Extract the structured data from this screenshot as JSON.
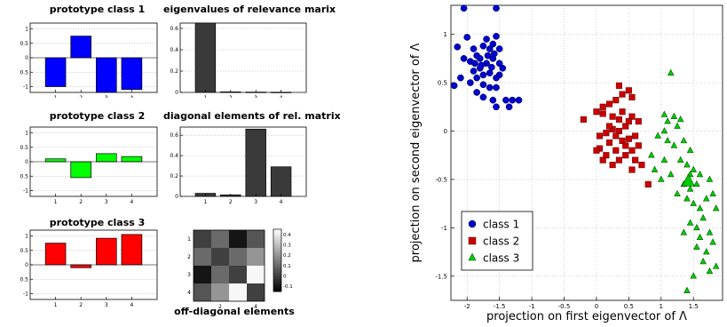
{
  "chart_data": [
    {
      "type": "bar",
      "title": "prototype class 1",
      "categories": [
        "1",
        "2",
        "3",
        "4"
      ],
      "values": [
        -1.0,
        0.75,
        -1.2,
        -1.1
      ],
      "ylim": [
        -1.2,
        1.2
      ],
      "yticks": [
        "1",
        "0.5",
        "0",
        "-0.5",
        "-1"
      ],
      "color": "#0000ff"
    },
    {
      "type": "bar",
      "title": "eigenvalues of relevance marix",
      "categories": [
        "1",
        "2",
        "3",
        "4"
      ],
      "values": [
        0.65,
        0.005,
        0.003,
        0.002
      ],
      "ylim": [
        0,
        0.65
      ],
      "yticks": [
        "0.6",
        "0.4",
        "0.2",
        "0"
      ],
      "color": "#3a3a3a"
    },
    {
      "type": "bar",
      "title": "prototype class 2",
      "categories": [
        "1",
        "2",
        "3",
        "4"
      ],
      "values": [
        0.1,
        -0.55,
        0.28,
        0.18
      ],
      "ylim": [
        -1.2,
        1.2
      ],
      "yticks": [
        "1",
        "0.5",
        "0",
        "-0.5",
        "-1"
      ],
      "color": "#00ff00"
    },
    {
      "type": "bar",
      "title": "diagonal elements of rel. matrix",
      "categories": [
        "1",
        "2",
        "3",
        "4"
      ],
      "values": [
        0.03,
        0.015,
        0.66,
        0.29
      ],
      "ylim": [
        0,
        0.68
      ],
      "yticks": [
        "0.6",
        "0.4",
        "0.2",
        "0"
      ],
      "color": "#3a3a3a"
    },
    {
      "type": "bar",
      "title": "prototype class 3",
      "categories": [
        "1",
        "2",
        "3",
        "4"
      ],
      "values": [
        0.75,
        -0.1,
        0.92,
        1.05
      ],
      "ylim": [
        -1.2,
        1.2
      ],
      "yticks": [
        "1",
        "0.5",
        "0",
        "-0.5",
        "-1"
      ],
      "color": "#ff0000"
    },
    {
      "type": "heatmap",
      "xlabel": "off-diagonal elements",
      "xticks": [
        "2",
        "4"
      ],
      "yticks": [
        "1",
        "2",
        "3",
        "4"
      ],
      "colorbar_ticks": [
        "0.4",
        "0.3",
        "0.2",
        "0.1",
        "0",
        "-0.1"
      ],
      "matrix": [
        [
          0.0,
          0.1,
          -0.1,
          0.05
        ],
        [
          0.1,
          0.0,
          0.1,
          0.2
        ],
        [
          -0.1,
          0.1,
          0.0,
          0.43
        ],
        [
          0.05,
          0.2,
          0.43,
          0.0
        ]
      ],
      "vmin": -0.15,
      "vmax": 0.45
    },
    {
      "type": "scatter",
      "xlabel": "projection on first eigenvector of Λ",
      "ylabel": "projection on second eigenvector of Λ",
      "xlim": [
        -2.25,
        1.95
      ],
      "ylim": [
        -1.75,
        1.3
      ],
      "xticks": [
        "-2",
        "-1.5",
        "-1",
        "-0.5",
        "0",
        "0.5",
        "1",
        "1.5"
      ],
      "yticks": [
        "1",
        "0.5",
        "0",
        "-0.5",
        "-1",
        "-1.5"
      ],
      "legend_position": "bottom-left",
      "series": [
        {
          "name": "class 1",
          "color": "#0000cc",
          "marker": "circle",
          "points": [
            [
              -2.05,
              1.27
            ],
            [
              -1.55,
              1.27
            ],
            [
              -2.15,
              0.87
            ],
            [
              -2.0,
              0.97
            ],
            [
              -1.9,
              0.85
            ],
            [
              -1.85,
              0.78
            ],
            [
              -1.8,
              0.75
            ],
            [
              -1.75,
              0.88
            ],
            [
              -1.7,
              0.95
            ],
            [
              -1.65,
              0.85
            ],
            [
              -1.6,
              0.9
            ],
            [
              -1.55,
              0.98
            ],
            [
              -1.5,
              0.85
            ],
            [
              -1.6,
              0.75
            ],
            [
              -1.7,
              0.7
            ],
            [
              -1.8,
              0.65
            ],
            [
              -1.9,
              0.62
            ],
            [
              -1.95,
              0.72
            ],
            [
              -2.05,
              0.75
            ],
            [
              -2.1,
              0.55
            ],
            [
              -2.2,
              0.47
            ],
            [
              -1.95,
              0.5
            ],
            [
              -1.85,
              0.55
            ],
            [
              -1.75,
              0.58
            ],
            [
              -1.65,
              0.6
            ],
            [
              -1.55,
              0.55
            ],
            [
              -1.5,
              0.7
            ],
            [
              -1.45,
              0.65
            ],
            [
              -1.75,
              0.48
            ],
            [
              -1.65,
              0.45
            ],
            [
              -1.55,
              0.45
            ],
            [
              -1.85,
              0.4
            ],
            [
              -1.75,
              0.35
            ],
            [
              -1.6,
              0.32
            ],
            [
              -1.4,
              0.32
            ],
            [
              -1.3,
              0.32
            ],
            [
              -1.55,
              0.25
            ],
            [
              -1.35,
              0.25
            ],
            [
              -1.2,
              0.32
            ],
            [
              -1.5,
              0.58
            ],
            [
              -1.68,
              0.78
            ],
            [
              -1.78,
              0.68
            ],
            [
              -1.62,
              0.66
            ],
            [
              -1.58,
              0.8
            ],
            [
              -1.88,
              0.7
            ]
          ]
        },
        {
          "name": "class 2",
          "color": "#cc0000",
          "marker": "square",
          "points": [
            [
              0.35,
              0.47
            ],
            [
              0.5,
              0.42
            ],
            [
              0.55,
              0.35
            ],
            [
              0.4,
              0.38
            ],
            [
              0.3,
              0.32
            ],
            [
              0.2,
              0.28
            ],
            [
              0.1,
              0.25
            ],
            [
              0.0,
              0.2
            ],
            [
              0.1,
              0.18
            ],
            [
              0.25,
              0.15
            ],
            [
              0.4,
              0.2
            ],
            [
              0.55,
              0.15
            ],
            [
              0.65,
              0.1
            ],
            [
              0.45,
              0.05
            ],
            [
              0.35,
              0.0
            ],
            [
              0.25,
              0.02
            ],
            [
              0.15,
              -0.02
            ],
            [
              0.05,
              -0.05
            ],
            [
              0.3,
              -0.05
            ],
            [
              0.4,
              -0.1
            ],
            [
              0.5,
              -0.08
            ],
            [
              0.6,
              -0.05
            ],
            [
              0.2,
              -0.12
            ],
            [
              0.05,
              -0.18
            ],
            [
              0.0,
              -0.2
            ],
            [
              0.15,
              -0.25
            ],
            [
              0.3,
              -0.2
            ],
            [
              0.45,
              -0.25
            ],
            [
              0.55,
              -0.2
            ],
            [
              0.6,
              -0.3
            ],
            [
              0.35,
              -0.3
            ],
            [
              0.25,
              -0.35
            ],
            [
              0.55,
              -0.4
            ],
            [
              0.7,
              -0.35
            ],
            [
              0.8,
              -0.55
            ],
            [
              0.5,
              0.1
            ],
            [
              -0.2,
              0.12
            ],
            [
              0.2,
              0.05
            ],
            [
              0.35,
              0.12
            ],
            [
              0.45,
              -0.15
            ],
            [
              0.1,
              -0.3
            ],
            [
              0.65,
              -0.15
            ]
          ]
        },
        {
          "name": "class 3",
          "color": "#00cc00",
          "marker": "triangle",
          "points": [
            [
              1.15,
              0.6
            ],
            [
              1.05,
              0.17
            ],
            [
              1.1,
              0.1
            ],
            [
              1.2,
              0.15
            ],
            [
              1.25,
              0.05
            ],
            [
              1.3,
              0.12
            ],
            [
              1.05,
              0.0
            ],
            [
              0.95,
              -0.05
            ],
            [
              1.1,
              -0.1
            ],
            [
              1.2,
              -0.15
            ],
            [
              1.35,
              -0.1
            ],
            [
              1.45,
              -0.2
            ],
            [
              1.3,
              -0.3
            ],
            [
              1.4,
              -0.35
            ],
            [
              1.5,
              -0.4
            ],
            [
              1.6,
              -0.45
            ],
            [
              1.75,
              -0.5
            ],
            [
              1.55,
              -0.55
            ],
            [
              1.45,
              -0.6
            ],
            [
              1.35,
              -0.55
            ],
            [
              1.25,
              -0.65
            ],
            [
              1.4,
              -0.7
            ],
            [
              1.5,
              -0.75
            ],
            [
              1.6,
              -0.8
            ],
            [
              1.7,
              -0.7
            ],
            [
              1.8,
              -0.65
            ],
            [
              1.85,
              -0.8
            ],
            [
              1.65,
              -0.9
            ],
            [
              1.55,
              -1.0
            ],
            [
              1.45,
              -0.95
            ],
            [
              1.35,
              -1.05
            ],
            [
              1.6,
              -1.1
            ],
            [
              1.75,
              -1.05
            ],
            [
              1.8,
              -1.15
            ],
            [
              1.7,
              -1.25
            ],
            [
              1.55,
              -1.2
            ],
            [
              1.65,
              -1.35
            ],
            [
              1.75,
              -1.45
            ],
            [
              1.85,
              -1.4
            ],
            [
              1.5,
              -1.5
            ],
            [
              1.4,
              -1.65
            ],
            [
              1.45,
              -0.45
            ],
            [
              1.0,
              -0.5
            ],
            [
              0.9,
              -0.4
            ],
            [
              0.85,
              -0.25
            ],
            [
              1.05,
              -0.3
            ],
            [
              1.15,
              -0.45
            ]
          ]
        }
      ],
      "highlight": [
        {
          "series": "class 3",
          "x": 1.42,
          "y": -0.52
        }
      ]
    }
  ]
}
